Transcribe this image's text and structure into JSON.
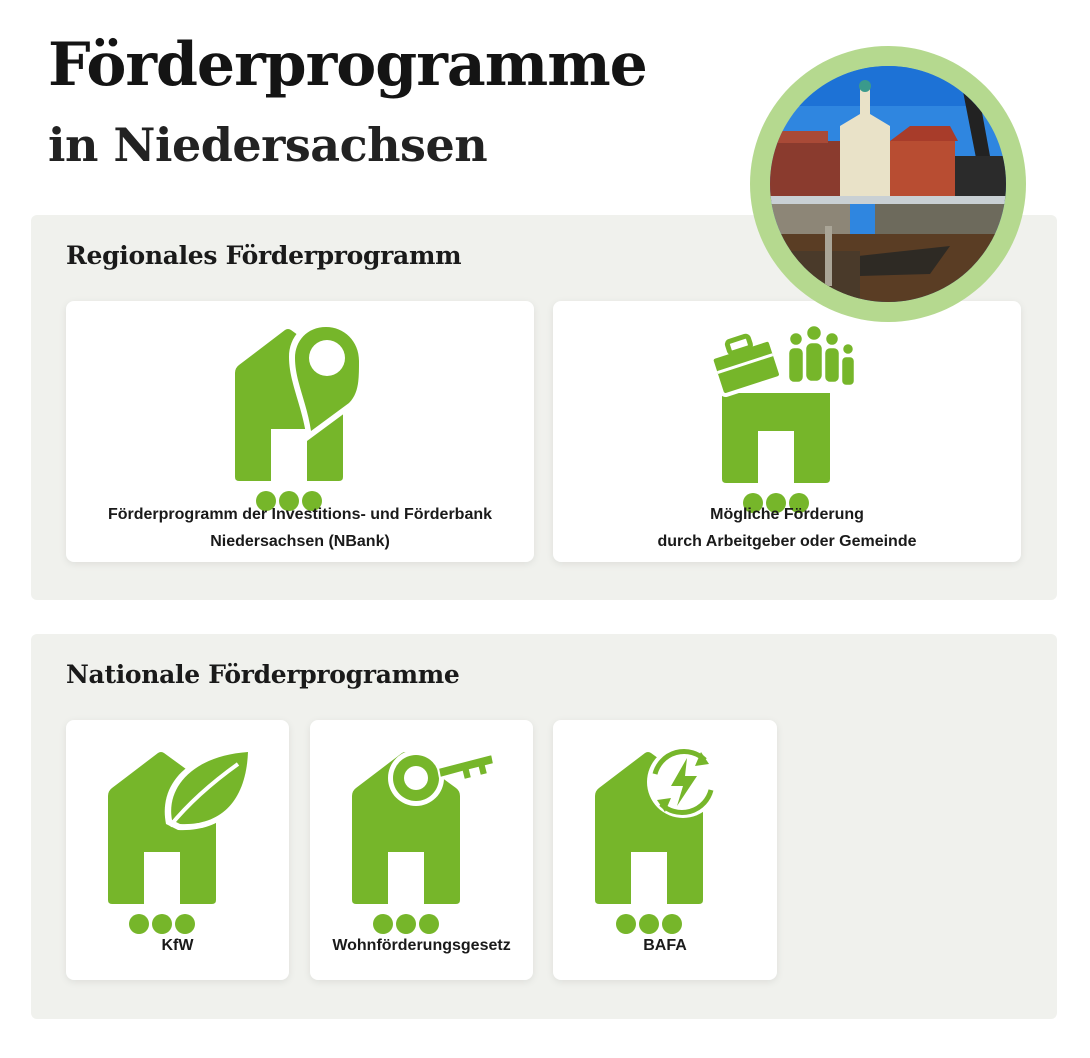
{
  "header": {
    "title": "Förderprogramme",
    "subtitle": "in Niedersachsen"
  },
  "colors": {
    "accent": "#76b62a",
    "ring": "#b5d98f",
    "panel": "#f0f1ed"
  },
  "regional": {
    "heading": "Regionales Förderprogramm",
    "cards": [
      {
        "icon": "house-location-pin-icon",
        "lines": [
          "Förderprogramm der Investitions- und Förderbank",
          "Niedersachsen (NBank)"
        ]
      },
      {
        "icon": "house-briefcase-people-icon",
        "lines": [
          "Mögliche Förderung",
          "durch Arbeitgeber oder Gemeinde"
        ]
      }
    ]
  },
  "national": {
    "heading": "Nationale Förderprogramme",
    "cards": [
      {
        "icon": "house-leaf-icon",
        "label": "KfW"
      },
      {
        "icon": "house-key-icon",
        "label": "Wohnförderungsgesetz"
      },
      {
        "icon": "house-energy-icon",
        "label": "BAFA"
      }
    ]
  }
}
